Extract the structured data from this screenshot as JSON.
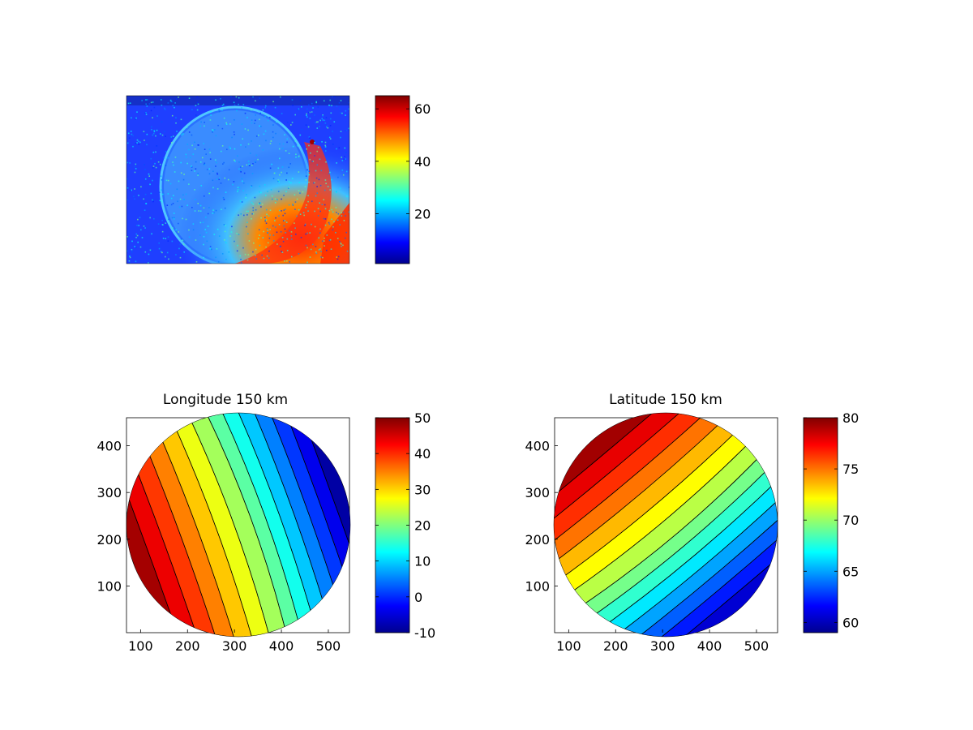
{
  "figure": {
    "background": "#ffffff",
    "colormap": "jet"
  },
  "chart_data": [
    {
      "type": "heatmap",
      "title": "",
      "description_kind": "image",
      "colorbar": {
        "min": 1,
        "max": 65,
        "ticks": [
          20,
          40,
          60
        ]
      }
    },
    {
      "type": "heatmap",
      "title": "Longitude 150 km",
      "xlabel": "",
      "ylabel": "",
      "xlim": [
        70,
        545
      ],
      "ylim": [
        0,
        460
      ],
      "xticks": [
        100,
        200,
        300,
        400,
        500
      ],
      "yticks": [
        100,
        200,
        300,
        400
      ],
      "disk": {
        "cx": 300,
        "cy": 230,
        "r": 230
      },
      "field": {
        "center_value": 20,
        "gradient_direction_deg": -20,
        "values_from": 50,
        "values_to": -10
      },
      "colorbar": {
        "min": -10,
        "max": 50,
        "ticks": [
          -10,
          0,
          10,
          20,
          30,
          40,
          50
        ]
      }
    },
    {
      "type": "heatmap",
      "title": "Latitude 150 km",
      "xlabel": "",
      "ylabel": "",
      "xlim": [
        70,
        545
      ],
      "ylim": [
        0,
        460
      ],
      "xticks": [
        100,
        200,
        300,
        400,
        500
      ],
      "yticks": [
        100,
        200,
        300,
        400
      ],
      "disk": {
        "cx": 300,
        "cy": 230,
        "r": 230
      },
      "field": {
        "center_value": 68,
        "gradient_direction_deg": 50,
        "values_from": 80,
        "values_to": 60
      },
      "colorbar": {
        "min": 59,
        "max": 80,
        "ticks": [
          60,
          65,
          70,
          75,
          80
        ]
      }
    }
  ]
}
